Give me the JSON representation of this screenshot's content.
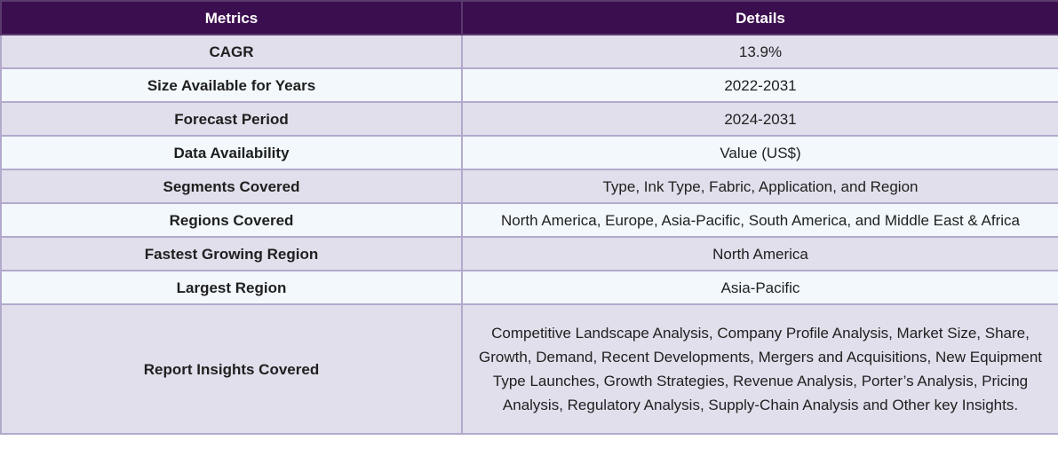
{
  "table": {
    "headers": [
      "Metrics",
      "Details"
    ],
    "rows": [
      {
        "metric": "CAGR",
        "details": "13.9%"
      },
      {
        "metric": "Size Available for Years",
        "details": "2022-2031"
      },
      {
        "metric": "Forecast Period",
        "details": "2024-2031"
      },
      {
        "metric": "Data Availability",
        "details": "Value (US$)"
      },
      {
        "metric": "Segments Covered",
        "details": "Type, Ink Type, Fabric, Application, and Region"
      },
      {
        "metric": "Regions Covered",
        "details": "North America, Europe, Asia-Pacific, South America, and Middle East & Africa"
      },
      {
        "metric": "Fastest Growing Region",
        "details": "North America"
      },
      {
        "metric": "Largest Region",
        "details": "Asia-Pacific"
      },
      {
        "metric": "Report Insights Covered",
        "details": "Competitive Landscape Analysis, Company Profile Analysis, Market Size, Share, Growth, Demand, Recent Developments, Mergers and Acquisitions, New Equipment Type Launches, Growth Strategies, Revenue Analysis, Porter’s Analysis, Pricing Analysis, Regulatory Analysis, Supply-Chain Analysis and Other key Insights."
      }
    ]
  },
  "colors": {
    "header_bg": "#3b0f4f",
    "row_odd_bg": "#e1dfeb",
    "row_even_bg": "#f2f8fc",
    "border": "#b3a9cc"
  }
}
